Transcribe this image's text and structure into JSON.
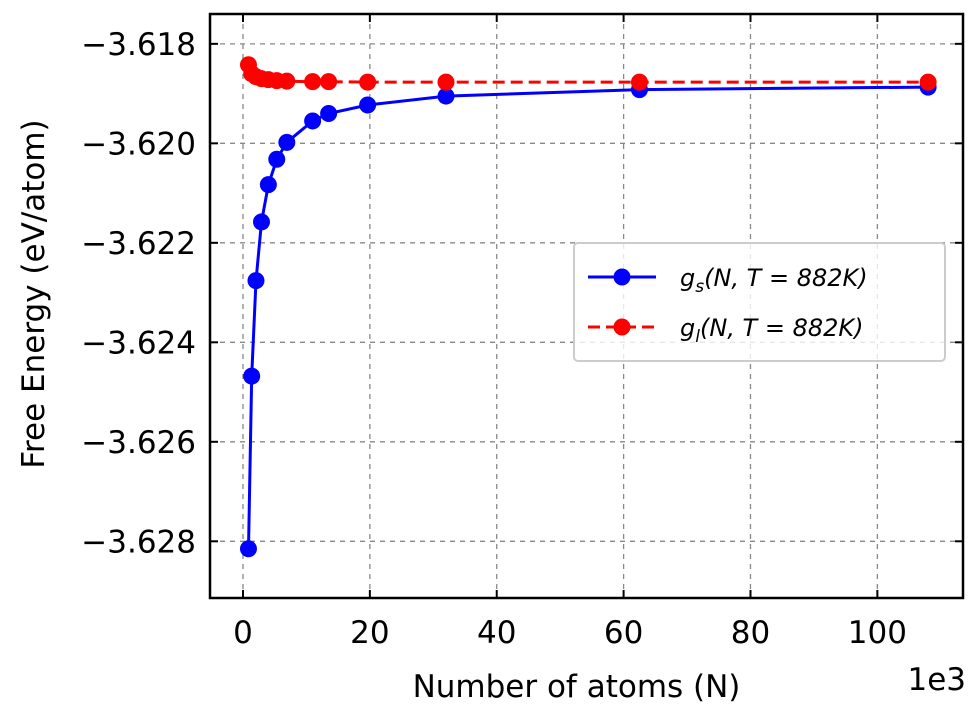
{
  "chart_data": {
    "type": "line",
    "xlabel": "Number of atoms (N)",
    "ylabel": "Free Energy (eV/atom)",
    "x_offset_label": "1e3",
    "xlim": [
      -5.2,
      113.5
    ],
    "ylim": [
      -3.62914,
      -3.6174
    ],
    "xticks": [
      0,
      20,
      40,
      60,
      80,
      100
    ],
    "yticks": [
      -3.628,
      -3.626,
      -3.624,
      -3.622,
      -3.62,
      -3.618
    ],
    "ytick_labels": [
      "−3.628",
      "−3.626",
      "−3.624",
      "−3.622",
      "−3.620",
      "−3.618"
    ],
    "grid": true,
    "legend_position": "center-right",
    "series": [
      {
        "name": "g_s(N, T = 882K)",
        "legend_main": "g",
        "legend_sub": "s",
        "legend_rest": "(N, T = 882K)",
        "color": "#0000ff",
        "linestyle": "solid",
        "x": [
          0.864,
          1.372,
          2.048,
          2.916,
          4.0,
          5.324,
          6.912,
          10.976,
          13.5,
          19.652,
          32.0,
          62.5,
          108.0
        ],
        "y": [
          -3.62815,
          -3.62468,
          -3.62276,
          -3.62158,
          -3.62083,
          -3.62032,
          -3.61998,
          -3.61955,
          -3.6194,
          -3.61923,
          -3.61905,
          -3.61892,
          -3.61887
        ]
      },
      {
        "name": "g_l(N, T = 882K)",
        "legend_main": "g",
        "legend_sub": "l",
        "legend_rest": "(N, T = 882K)",
        "color": "#ff0000",
        "linestyle": "dashed",
        "x": [
          0.864,
          1.372,
          2.048,
          2.916,
          4.0,
          5.324,
          6.912,
          10.976,
          13.5,
          19.652,
          32.0,
          62.5,
          108.0
        ],
        "y": [
          -3.61842,
          -3.6186,
          -3.61866,
          -3.6187,
          -3.61872,
          -3.61874,
          -3.61875,
          -3.61876,
          -3.61876,
          -3.61877,
          -3.61877,
          -3.61877,
          -3.61877
        ]
      }
    ]
  }
}
